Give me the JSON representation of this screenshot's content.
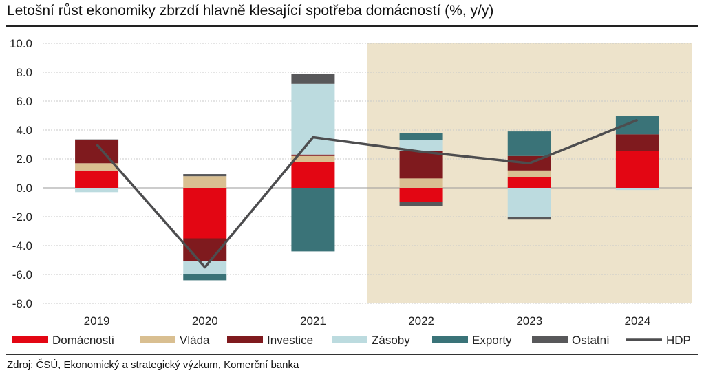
{
  "title": "Letošní růst ekonomiky zbrzdí hlavně klesající spotřeba domácností (%, y/y)",
  "source": "Zdroj: ČSÚ, Ekonomický a strategický výzkum, Komerční banka",
  "chart_data": {
    "type": "bar",
    "stacked": true,
    "categories": [
      "2019",
      "2020",
      "2021",
      "2022",
      "2023",
      "2024"
    ],
    "ylim": [
      -8,
      10
    ],
    "yticks": [
      "10.0",
      "8.0",
      "6.0",
      "4.0",
      "2.0",
      "0.0",
      "-2.0",
      "-4.0",
      "-6.0",
      "-8.0"
    ],
    "forecast_shading_from": "2022",
    "legend_position": "bottom",
    "series": [
      {
        "name": "Domácnosti",
        "color": "#e30613",
        "values": [
          1.2,
          -3.5,
          1.8,
          -1.0,
          0.75,
          2.55
        ]
      },
      {
        "name": "Vláda",
        "color": "#d9bf91",
        "values": [
          0.5,
          0.8,
          0.4,
          0.65,
          0.45,
          0.0
        ]
      },
      {
        "name": "Investice",
        "color": "#7f1a1e",
        "values": [
          1.6,
          -1.6,
          0.1,
          1.9,
          1.0,
          1.15
        ]
      },
      {
        "name": "Zásoby",
        "color": "#bcdbdf",
        "values": [
          -0.3,
          -0.9,
          4.9,
          0.75,
          -2.0,
          -0.15
        ]
      },
      {
        "name": "Exporty",
        "color": "#3a7378",
        "values": [
          0.0,
          -0.4,
          -4.4,
          0.5,
          1.7,
          1.3
        ]
      },
      {
        "name": "Ostatní",
        "color": "#58585a",
        "values": [
          0.05,
          0.15,
          0.7,
          -0.25,
          -0.2,
          0.0
        ]
      }
    ],
    "line": {
      "name": "HDP",
      "color": "#4d4d4f",
      "values": [
        3.0,
        -5.5,
        3.5,
        2.5,
        1.7,
        4.7
      ]
    }
  }
}
